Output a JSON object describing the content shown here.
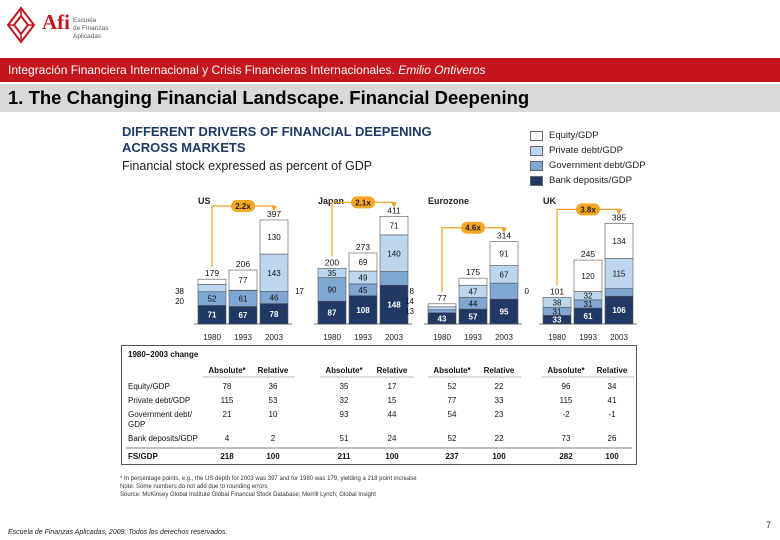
{
  "header": {
    "logo_text": "Afi",
    "logo_sub_lines": [
      "Escuela",
      "de Finanzas",
      "Aplicadas"
    ],
    "banner_text": "Integración Financiera Internacional y Crisis Financieras Internacionales.",
    "banner_author": "Emilio Ontiveros"
  },
  "slide": {
    "title": "1. The Changing Financial Landscape. Financial Deepening"
  },
  "figure": {
    "title_lines": [
      "DIFFERENT DRIVERS OF FINANCIAL DEEPENING",
      "ACROSS MARKETS"
    ],
    "subtitle": "Financial stock expressed as percent of GDP"
  },
  "chart_data": {
    "type": "bar",
    "stacked": true,
    "unit": "percent of GDP",
    "legend": [
      {
        "name": "Equity/GDP",
        "color": "#ffffff"
      },
      {
        "name": "Private debt/GDP",
        "color": "#bcd6ee"
      },
      {
        "name": "Government debt/GDP",
        "color": "#7fa7d3"
      },
      {
        "name": "Bank deposits/GDP",
        "color": "#1f3864"
      }
    ],
    "x_years": [
      "1980",
      "1993",
      "2003"
    ],
    "markets": [
      {
        "name": "US",
        "growth_label": "2.2x",
        "totals": [
          "179",
          "206",
          "397"
        ],
        "segments": [
          [
            "71",
            "52",
            "28",
            "20"
          ],
          [
            "67",
            "61",
            "",
            "77"
          ],
          [
            "78",
            "46",
            "143",
            "130"
          ]
        ],
        "side_labels": [
          "38",
          "20"
        ]
      },
      {
        "name": "Japan",
        "growth_label": "2.1x",
        "totals": [
          "200",
          "273",
          "411"
        ],
        "segments": [
          [
            "87",
            "90",
            "35",
            ""
          ],
          [
            "108",
            "45",
            "49",
            "69"
          ],
          [
            "148",
            "",
            "140",
            "71"
          ]
        ],
        "side_labels": [
          "17"
        ]
      },
      {
        "name": "Eurozone",
        "growth_label": "4.6x",
        "totals": [
          "77",
          "175",
          "314"
        ],
        "segments": [
          [
            "43",
            "",
            "",
            ""
          ],
          [
            "57",
            "44",
            "47",
            "27"
          ],
          [
            "95",
            "",
            "67",
            "91"
          ]
        ],
        "side_labels": [
          "8",
          "14",
          "13"
        ]
      },
      {
        "name": "UK",
        "growth_label": "3.8x",
        "totals": [
          "101",
          "245",
          "385"
        ],
        "segments": [
          [
            "33",
            "31",
            "38",
            ""
          ],
          [
            "61",
            "31",
            "32",
            "120"
          ],
          [
            "106",
            "29",
            "115",
            "134"
          ]
        ],
        "side_labels": [
          "0"
        ]
      }
    ],
    "summary_table": {
      "title": "1980–2003 change",
      "groups": [
        "US",
        "Japan",
        "Eurozone",
        "UK"
      ],
      "columns": [
        "Absolute*",
        "Relative"
      ],
      "rows": [
        {
          "label": "Equity/GDP",
          "values": [
            "78",
            "36",
            "35",
            "17",
            "52",
            "22",
            "96",
            "34"
          ]
        },
        {
          "label": "Private debt/GDP",
          "values": [
            "115",
            "53",
            "32",
            "15",
            "77",
            "33",
            "115",
            "41"
          ]
        },
        {
          "label": "Government debt/GDP",
          "values": [
            "21",
            "10",
            "93",
            "44",
            "54",
            "23",
            "-2",
            "-1"
          ]
        },
        {
          "label": "Bank deposits/GDP",
          "values": [
            "4",
            "2",
            "51",
            "24",
            "52",
            "22",
            "73",
            "26"
          ]
        }
      ],
      "total": {
        "label": "FS/GDP",
        "values": [
          "218",
          "100",
          "211",
          "100",
          "237",
          "100",
          "282",
          "100"
        ]
      }
    }
  },
  "notes": [
    "* In percentage points, e.g., the US depth for 2003 was 397 and for 1980 was 179, yielding a 218 point increase",
    "Note: Some numbers do not add due to rounding errors",
    "Source: McKinsey Global Institute Global Financial Stock Database; Merrill Lynch; Global Insight"
  ],
  "footer": {
    "copyright": "Escuela de Finanzas Aplicadas, 2009. Todos los derechos reservados.",
    "page_number": "7"
  }
}
